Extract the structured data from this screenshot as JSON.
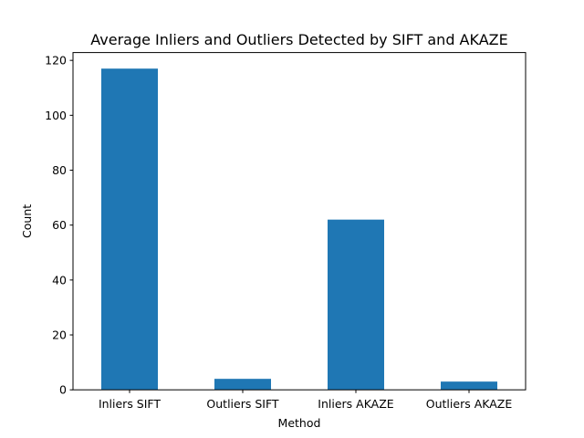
{
  "chart_data": {
    "type": "bar",
    "title": "Average Inliers and Outliers Detected by SIFT and AKAZE",
    "xlabel": "Method",
    "ylabel": "Count",
    "categories": [
      "Inliers SIFT",
      "Outliers SIFT",
      "Inliers AKAZE",
      "Outliers AKAZE"
    ],
    "values": [
      117,
      4,
      62,
      3
    ],
    "ylim": [
      0,
      122.85
    ],
    "yticks": [
      0,
      20,
      40,
      60,
      80,
      100,
      120
    ],
    "ytick_labels": [
      "0",
      "20",
      "40",
      "60",
      "80",
      "100",
      "120"
    ],
    "bar_color": "#1f77b4",
    "grid": false,
    "legend": false
  }
}
